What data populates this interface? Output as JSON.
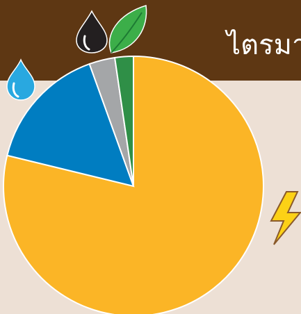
{
  "chart_data": {
    "type": "pie",
    "title": "ไตรมา",
    "values": [
      78.8,
      15.7,
      3.2,
      2.3
    ],
    "colors": [
      "#fbb526",
      "#007dc1",
      "#a4a6a8",
      "#2f8f47"
    ],
    "start_angle": 0,
    "direction": "clockwise"
  }
}
